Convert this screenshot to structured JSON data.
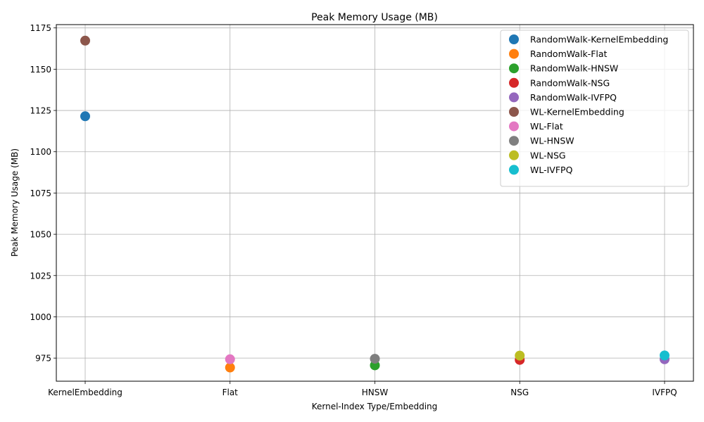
{
  "chart_data": {
    "type": "scatter",
    "title": "Peak Memory Usage (MB)",
    "xlabel": "Kernel-Index Type/Embedding",
    "ylabel": "Peak Memory Usage (MB)",
    "categories": [
      "KernelEmbedding",
      "Flat",
      "HNSW",
      "NSG",
      "IVFPQ"
    ],
    "ylim": [
      961,
      1177
    ],
    "yticks": [
      975,
      1000,
      1025,
      1050,
      1075,
      1100,
      1125,
      1150,
      1175
    ],
    "grid": true,
    "legend_position": "top-right",
    "series": [
      {
        "name": "RandomWalk-KernelEmbedding",
        "color": "#1f77b4",
        "x": "KernelEmbedding",
        "y": 1121.5
      },
      {
        "name": "RandomWalk-Flat",
        "color": "#ff7f0e",
        "x": "Flat",
        "y": 969.3
      },
      {
        "name": "RandomWalk-HNSW",
        "color": "#2ca02c",
        "x": "HNSW",
        "y": 970.6
      },
      {
        "name": "RandomWalk-NSG",
        "color": "#d62728",
        "x": "NSG",
        "y": 973.9
      },
      {
        "name": "RandomWalk-IVFPQ",
        "color": "#9467bd",
        "x": "IVFPQ",
        "y": 974.3
      },
      {
        "name": "WL-KernelEmbedding",
        "color": "#8c564b",
        "x": "KernelEmbedding",
        "y": 1167.3
      },
      {
        "name": "WL-Flat",
        "color": "#e377c2",
        "x": "Flat",
        "y": 974.3
      },
      {
        "name": "WL-HNSW",
        "color": "#7f7f7f",
        "x": "HNSW",
        "y": 974.6
      },
      {
        "name": "WL-NSG",
        "color": "#bcbd22",
        "x": "NSG",
        "y": 976.5
      },
      {
        "name": "WL-IVFPQ",
        "color": "#17becf",
        "x": "IVFPQ",
        "y": 976.6
      }
    ]
  }
}
